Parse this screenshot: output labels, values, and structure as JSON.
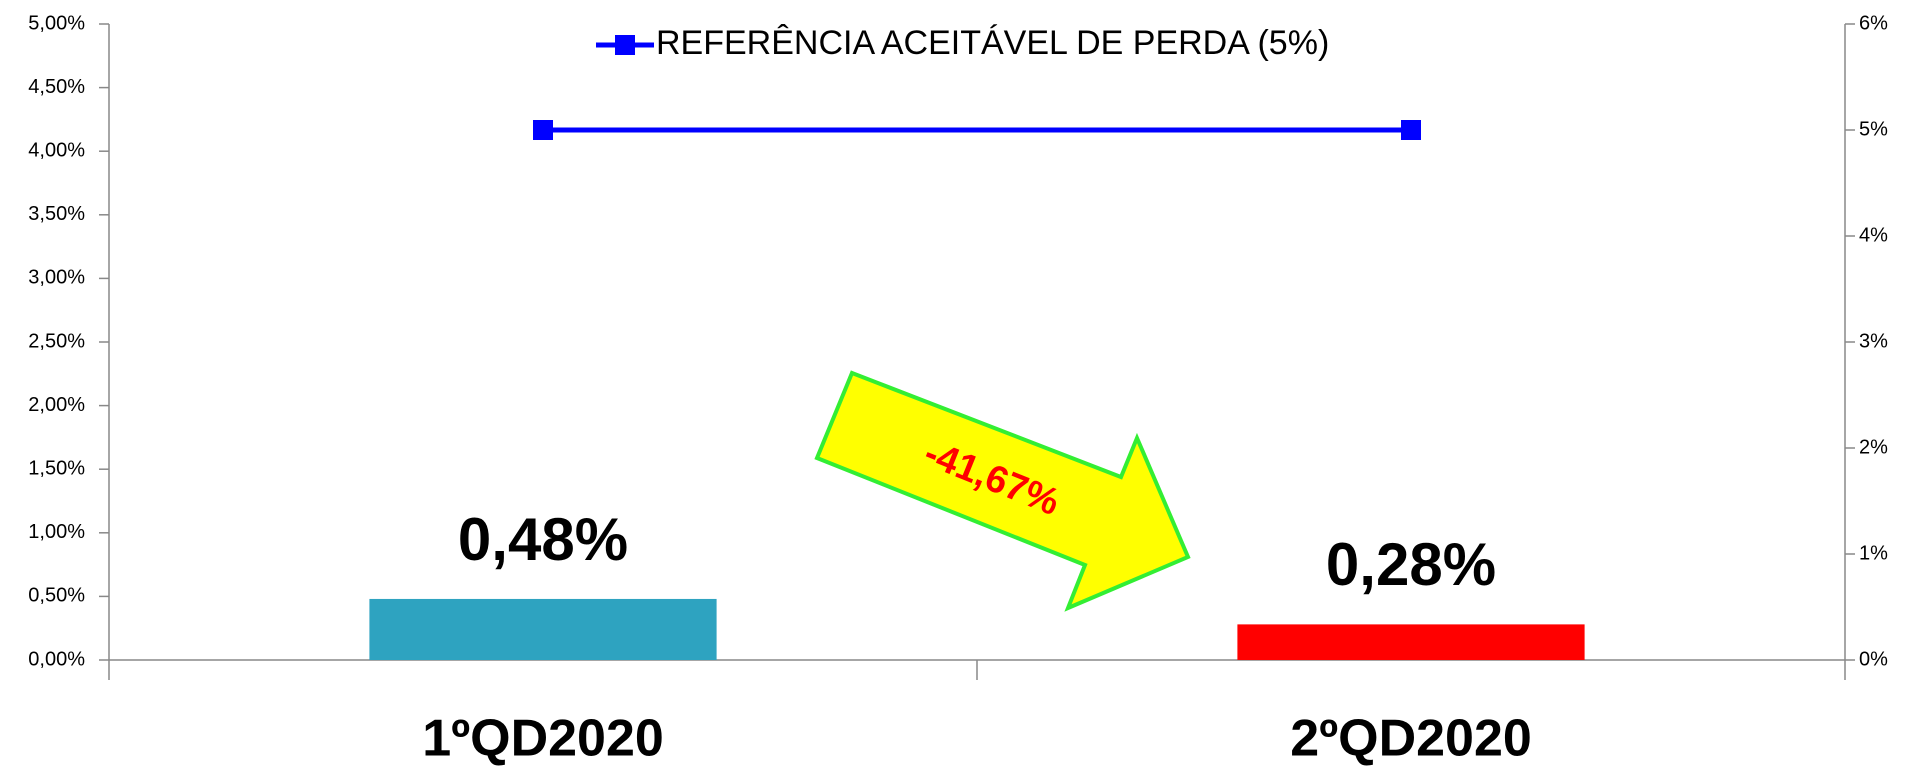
{
  "chart_data": {
    "type": "bar",
    "categories": [
      "1ºQD2020",
      "2ºQD2020"
    ],
    "values": [
      0.48,
      0.28
    ],
    "value_labels": [
      "0,48%",
      "0,28%"
    ],
    "colors": [
      "#2ea3c0",
      "#ff0000"
    ],
    "ylim": [
      0,
      5
    ],
    "yticks": [
      {
        "value": 0,
        "label": "0,00%"
      },
      {
        "value": 0.5,
        "label": "0,50%"
      },
      {
        "value": 1,
        "label": "1,00%"
      },
      {
        "value": 1.5,
        "label": "1,50%"
      },
      {
        "value": 2,
        "label": "2,00%"
      },
      {
        "value": 2.5,
        "label": "2,50%"
      },
      {
        "value": 3,
        "label": "3,00%"
      },
      {
        "value": 3.5,
        "label": "3,50%"
      },
      {
        "value": 4,
        "label": "4,00%"
      },
      {
        "value": 4.5,
        "label": "4,50%"
      },
      {
        "value": 5,
        "label": "5,00%"
      }
    ],
    "y2lim": [
      0,
      6
    ],
    "y2ticks": [
      {
        "value": 0,
        "label": "0%"
      },
      {
        "value": 1,
        "label": "1%"
      },
      {
        "value": 2,
        "label": "2%"
      },
      {
        "value": 3,
        "label": "3%"
      },
      {
        "value": 4,
        "label": "4%"
      },
      {
        "value": 5,
        "label": "5%"
      },
      {
        "value": 6,
        "label": "6%"
      }
    ],
    "series": [
      {
        "name": "REFERÊNCIA ACEITÁVEL DE PERDA (5%)",
        "color": "#0000ff",
        "values": [
          5,
          5
        ],
        "axis": "y2",
        "type": "line"
      }
    ],
    "annotation": "-41,67%",
    "legend": "top"
  }
}
